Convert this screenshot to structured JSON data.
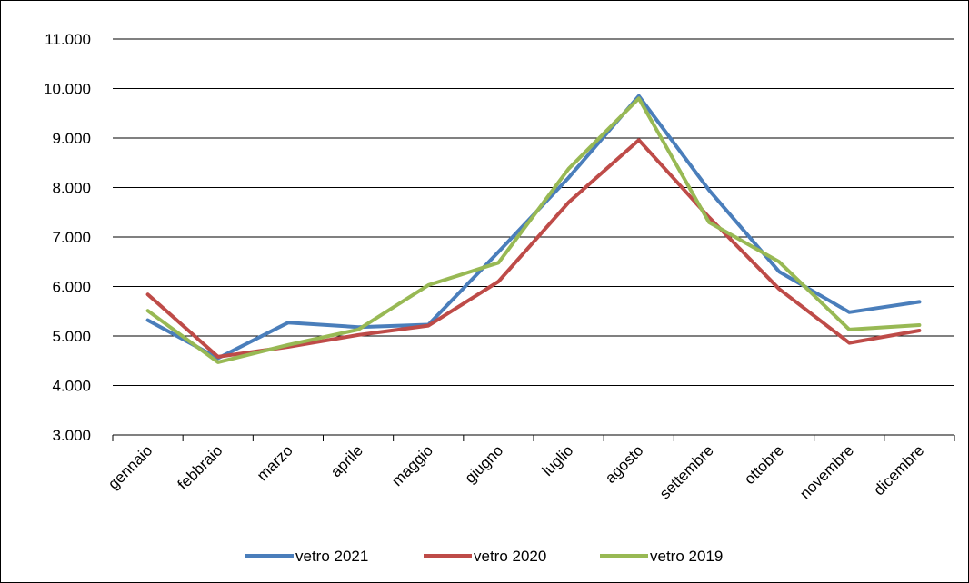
{
  "chart_data": {
    "type": "line",
    "title": "",
    "xlabel": "",
    "ylabel": "",
    "categories": [
      "gennaio",
      "febbraio",
      "marzo",
      "aprile",
      "maggio",
      "giugno",
      "luglio",
      "agosto",
      "settembre",
      "ottobre",
      "novembre",
      "dicembre"
    ],
    "ylim": [
      3000,
      11000
    ],
    "yticks": [
      3000,
      4000,
      5000,
      6000,
      7000,
      8000,
      9000,
      10000,
      11000
    ],
    "ytick_labels": [
      "3.000",
      "4.000",
      "5.000",
      "6.000",
      "7.000",
      "8.000",
      "9.000",
      "10.000",
      "11.000"
    ],
    "grid": "horizontal",
    "legend_position": "bottom",
    "series": [
      {
        "name": "vetro  2021",
        "color": "#4a7ebb",
        "values": [
          5320,
          4550,
          5270,
          5180,
          5230,
          6700,
          8200,
          9850,
          7950,
          6300,
          5480,
          5690
        ]
      },
      {
        "name": "vetro  2020",
        "color": "#be4b48",
        "values": [
          5840,
          4580,
          4780,
          5020,
          5210,
          6100,
          7700,
          8960,
          7400,
          5950,
          4860,
          5110
        ]
      },
      {
        "name": "vetro  2019",
        "color": "#98b954",
        "values": [
          5510,
          4470,
          4820,
          5130,
          6030,
          6480,
          8380,
          9800,
          7300,
          6500,
          5130,
          5220
        ]
      }
    ]
  }
}
